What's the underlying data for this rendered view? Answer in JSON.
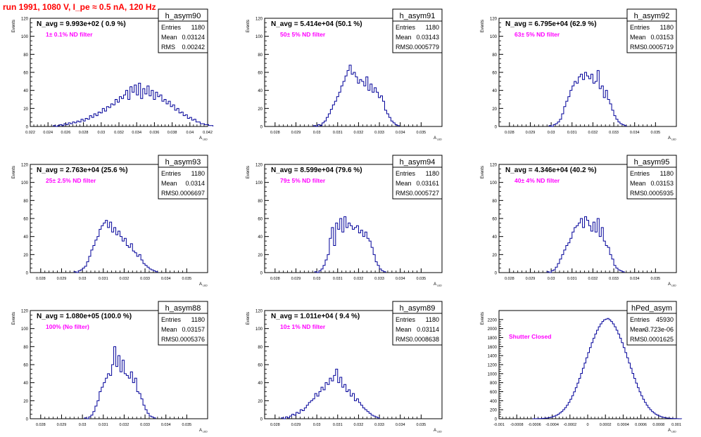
{
  "page_title": "run 1991,  1080 V, I_pe ≈ 0.5 nA, 120 Hz",
  "stat_labels": {
    "entries": "Entries",
    "mean": "Mean",
    "rms": "RMS"
  },
  "axis": {
    "y_label": "Events",
    "x_label": "A",
    "x_label_sub": "LED"
  },
  "colors": {
    "title": "#ff0000",
    "filter_note": "#ff00ff",
    "histogram": "#000099",
    "text": "#000000"
  },
  "chart_data": [
    {
      "type": "bar",
      "name": "h_asym90",
      "naavg": "N_avg = 9.993e+02 ( 0.9 %)",
      "note": "1± 0.1% ND filter",
      "entries": "1180",
      "mean": "0.03124",
      "rms": "0.00242",
      "xlim": [
        0.022,
        0.042
      ],
      "ylim": [
        0,
        120
      ],
      "xticks": [
        "0.022",
        "0.024",
        "0.026",
        "0.028",
        "0.03",
        "0.032",
        "0.034",
        "0.036",
        "0.038",
        "0.04",
        "0.042"
      ],
      "yticks": [
        "0",
        "20",
        "40",
        "60",
        "80",
        "100",
        "120"
      ],
      "bin_start": 0.0246,
      "bin_width": 0.00024,
      "values": [
        1,
        0,
        1,
        2,
        1,
        3,
        2,
        4,
        3,
        5,
        4,
        6,
        5,
        8,
        6,
        9,
        8,
        12,
        10,
        14,
        12,
        16,
        15,
        20,
        17,
        22,
        21,
        25,
        24,
        30,
        27,
        33,
        31,
        35,
        40,
        30,
        44,
        38,
        46,
        35,
        48,
        31,
        42,
        36,
        45,
        34,
        40,
        30,
        38,
        33,
        35,
        28,
        30,
        25,
        28,
        22,
        24,
        18,
        20,
        15,
        16,
        12,
        13,
        9,
        10,
        7,
        8,
        5,
        5,
        3,
        3,
        2,
        2,
        1,
        1
      ]
    },
    {
      "type": "bar",
      "name": "h_asym91",
      "naavg": "N_avg = 5.414e+04 (50.1 %)",
      "note": "50± 5% ND filter",
      "entries": "1180",
      "mean": "0.03143",
      "rms": "0.0005779",
      "xlim": [
        0.0275,
        0.036
      ],
      "ylim": [
        0,
        120
      ],
      "xticks": [
        "0.028",
        "0.029",
        "0.03",
        "0.031",
        "0.032",
        "0.033",
        "0.034",
        "0.035"
      ],
      "yticks": [
        "0",
        "20",
        "40",
        "60",
        "80",
        "100",
        "120"
      ],
      "bin_start": 0.02985,
      "bin_width": 0.0001,
      "values": [
        1,
        0,
        2,
        1,
        4,
        6,
        10,
        14,
        19,
        24,
        28,
        33,
        38,
        45,
        50,
        56,
        62,
        68,
        58,
        60,
        55,
        48,
        52,
        50,
        45,
        55,
        40,
        47,
        38,
        43,
        38,
        32,
        34,
        28,
        18,
        14,
        10,
        6,
        4,
        2,
        1
      ]
    },
    {
      "type": "bar",
      "name": "h_asym92",
      "naavg": "N_avg = 6.795e+04 (62.9 %)",
      "note": "63± 5% ND filter",
      "entries": "1180",
      "mean": "0.03153",
      "rms": "0.0005719",
      "xlim": [
        0.0275,
        0.036
      ],
      "ylim": [
        0,
        120
      ],
      "xticks": [
        "0.028",
        "0.029",
        "0.03",
        "0.031",
        "0.032",
        "0.033",
        "0.034",
        "0.035"
      ],
      "yticks": [
        "0",
        "20",
        "40",
        "60",
        "80",
        "100",
        "120"
      ],
      "bin_start": 0.0299,
      "bin_width": 0.0001,
      "values": [
        1,
        0,
        2,
        3,
        5,
        8,
        14,
        22,
        28,
        33,
        40,
        45,
        50,
        48,
        55,
        58,
        52,
        60,
        56,
        53,
        58,
        48,
        50,
        62,
        42,
        45,
        32,
        40,
        30,
        25,
        18,
        12,
        8,
        5,
        3,
        2,
        1
      ]
    },
    {
      "type": "bar",
      "name": "h_asym93",
      "naavg": "N_avg = 2.763e+04 (25.6 %)",
      "note": "25± 2.5% ND filter",
      "entries": "1180",
      "mean": "0.0314",
      "rms": "0.0006697",
      "xlim": [
        0.0275,
        0.036
      ],
      "ylim": [
        0,
        120
      ],
      "xticks": [
        "0.028",
        "0.029",
        "0.03",
        "0.031",
        "0.032",
        "0.033",
        "0.034",
        "0.035"
      ],
      "yticks": [
        "0",
        "20",
        "40",
        "60",
        "80",
        "100",
        "120"
      ],
      "bin_start": 0.0296,
      "bin_width": 0.0001,
      "values": [
        1,
        0,
        2,
        3,
        5,
        7,
        12,
        18,
        25,
        30,
        36,
        40,
        48,
        52,
        55,
        58,
        50,
        56,
        45,
        50,
        42,
        46,
        40,
        35,
        38,
        30,
        28,
        32,
        24,
        22,
        18,
        20,
        14,
        10,
        8,
        6,
        4,
        3,
        2,
        1
      ]
    },
    {
      "type": "bar",
      "name": "h_asym94",
      "naavg": "N_avg = 8.599e+04 (79.6 %)",
      "note": "79± 5% ND filter",
      "entries": "1180",
      "mean": "0.03161",
      "rms": "0.0005727",
      "xlim": [
        0.0275,
        0.036
      ],
      "ylim": [
        0,
        120
      ],
      "xticks": [
        "0.028",
        "0.029",
        "0.03",
        "0.031",
        "0.032",
        "0.033",
        "0.034",
        "0.035"
      ],
      "yticks": [
        "0",
        "20",
        "40",
        "60",
        "80",
        "100",
        "120"
      ],
      "bin_start": 0.0299,
      "bin_width": 0.0001,
      "values": [
        1,
        0,
        2,
        4,
        8,
        14,
        20,
        38,
        50,
        30,
        55,
        48,
        60,
        45,
        62,
        50,
        55,
        52,
        48,
        50,
        52,
        44,
        47,
        40,
        45,
        38,
        35,
        28,
        20,
        12,
        8,
        4,
        2,
        1
      ]
    },
    {
      "type": "bar",
      "name": "h_asym95",
      "naavg": "N_avg = 4.346e+04 (40.2 %)",
      "note": "40± 4% ND filter",
      "entries": "1180",
      "mean": "0.03153",
      "rms": "0.0005935",
      "xlim": [
        0.0275,
        0.036
      ],
      "ylim": [
        0,
        120
      ],
      "xticks": [
        "0.028",
        "0.029",
        "0.03",
        "0.031",
        "0.032",
        "0.033",
        "0.034",
        "0.035"
      ],
      "yticks": [
        "0",
        "20",
        "40",
        "60",
        "80",
        "100",
        "120"
      ],
      "bin_start": 0.0298,
      "bin_width": 0.0001,
      "values": [
        1,
        0,
        2,
        3,
        6,
        10,
        15,
        20,
        25,
        30,
        33,
        38,
        45,
        50,
        52,
        55,
        60,
        50,
        62,
        58,
        52,
        46,
        56,
        45,
        60,
        40,
        50,
        35,
        30,
        28,
        20,
        15,
        8,
        5,
        3,
        2,
        1
      ]
    },
    {
      "type": "bar",
      "name": "h_asym88",
      "naavg": "N_avg = 1.080e+05 (100.0 %)",
      "note": "100% (No filter)",
      "entries": "1180",
      "mean": "0.03157",
      "rms": "0.0005376",
      "xlim": [
        0.0275,
        0.036
      ],
      "ylim": [
        0,
        120
      ],
      "xticks": [
        "0.028",
        "0.029",
        "0.03",
        "0.031",
        "0.032",
        "0.033",
        "0.034",
        "0.035"
      ],
      "yticks": [
        "0",
        "20",
        "40",
        "60",
        "80",
        "100",
        "120"
      ],
      "bin_start": 0.0301,
      "bin_width": 0.0001,
      "values": [
        1,
        0,
        2,
        4,
        8,
        14,
        20,
        30,
        35,
        40,
        45,
        50,
        48,
        60,
        80,
        58,
        70,
        52,
        65,
        50,
        48,
        45,
        52,
        40,
        45,
        30,
        28,
        22,
        15,
        10,
        6,
        3,
        2,
        1
      ]
    },
    {
      "type": "bar",
      "name": "h_asym89",
      "naavg": "N_avg = 1.011e+04 ( 9.4 %)",
      "note": "10± 1% ND filter",
      "entries": "1180",
      "mean": "0.03114",
      "rms": "0.0008638",
      "xlim": [
        0.0275,
        0.036
      ],
      "ylim": [
        0,
        120
      ],
      "xticks": [
        "0.028",
        "0.029",
        "0.03",
        "0.031",
        "0.032",
        "0.033",
        "0.034",
        "0.035"
      ],
      "yticks": [
        "0",
        "20",
        "40",
        "60",
        "80",
        "100",
        "120"
      ],
      "bin_start": 0.0283,
      "bin_width": 0.0001,
      "values": [
        1,
        0,
        2,
        1,
        3,
        5,
        4,
        7,
        6,
        10,
        9,
        12,
        15,
        18,
        20,
        22,
        28,
        25,
        30,
        35,
        32,
        40,
        38,
        45,
        42,
        48,
        55,
        40,
        46,
        35,
        38,
        30,
        32,
        25,
        28,
        20,
        22,
        18,
        15,
        12,
        10,
        8,
        6,
        4,
        3,
        2,
        1
      ]
    },
    {
      "type": "bar",
      "name": "hPed_asym",
      "naavg": "",
      "note": "Shutter Closed",
      "entries": "45930",
      "mean": "-3.723e-06",
      "rms": "0.0001625",
      "xlim": [
        -0.001,
        0.001
      ],
      "ylim": [
        0,
        2400
      ],
      "xticks": [
        "-0.001",
        "-0.0008",
        "-0.0006",
        "-0.0004",
        "-0.0002",
        "0",
        "0.0002",
        "0.0004",
        "0.0006",
        "0.0008",
        "0.001"
      ],
      "yticks": [
        "0",
        "200",
        "400",
        "600",
        "800",
        "1000",
        "1200",
        "1400",
        "1600",
        "1800",
        "2000",
        "2200"
      ],
      "bin_start": -0.00062,
      "bin_width": 2e-05,
      "values": [
        1,
        1,
        2,
        3,
        4,
        6,
        9,
        13,
        18,
        25,
        34,
        46,
        60,
        78,
        100,
        128,
        160,
        200,
        245,
        300,
        362,
        432,
        510,
        596,
        690,
        790,
        896,
        1006,
        1120,
        1236,
        1352,
        1466,
        1578,
        1686,
        1786,
        1880,
        1964,
        2040,
        2104,
        2156,
        2195,
        2210,
        2225,
        2195,
        2156,
        2104,
        2040,
        1964,
        1880,
        1786,
        1686,
        1578,
        1466,
        1352,
        1236,
        1120,
        1006,
        896,
        790,
        690,
        596,
        510,
        432,
        362,
        300,
        245,
        200,
        160,
        128,
        100,
        78,
        60,
        46,
        34,
        25,
        18,
        13,
        9,
        6,
        4,
        3,
        2,
        1,
        1
      ]
    }
  ]
}
